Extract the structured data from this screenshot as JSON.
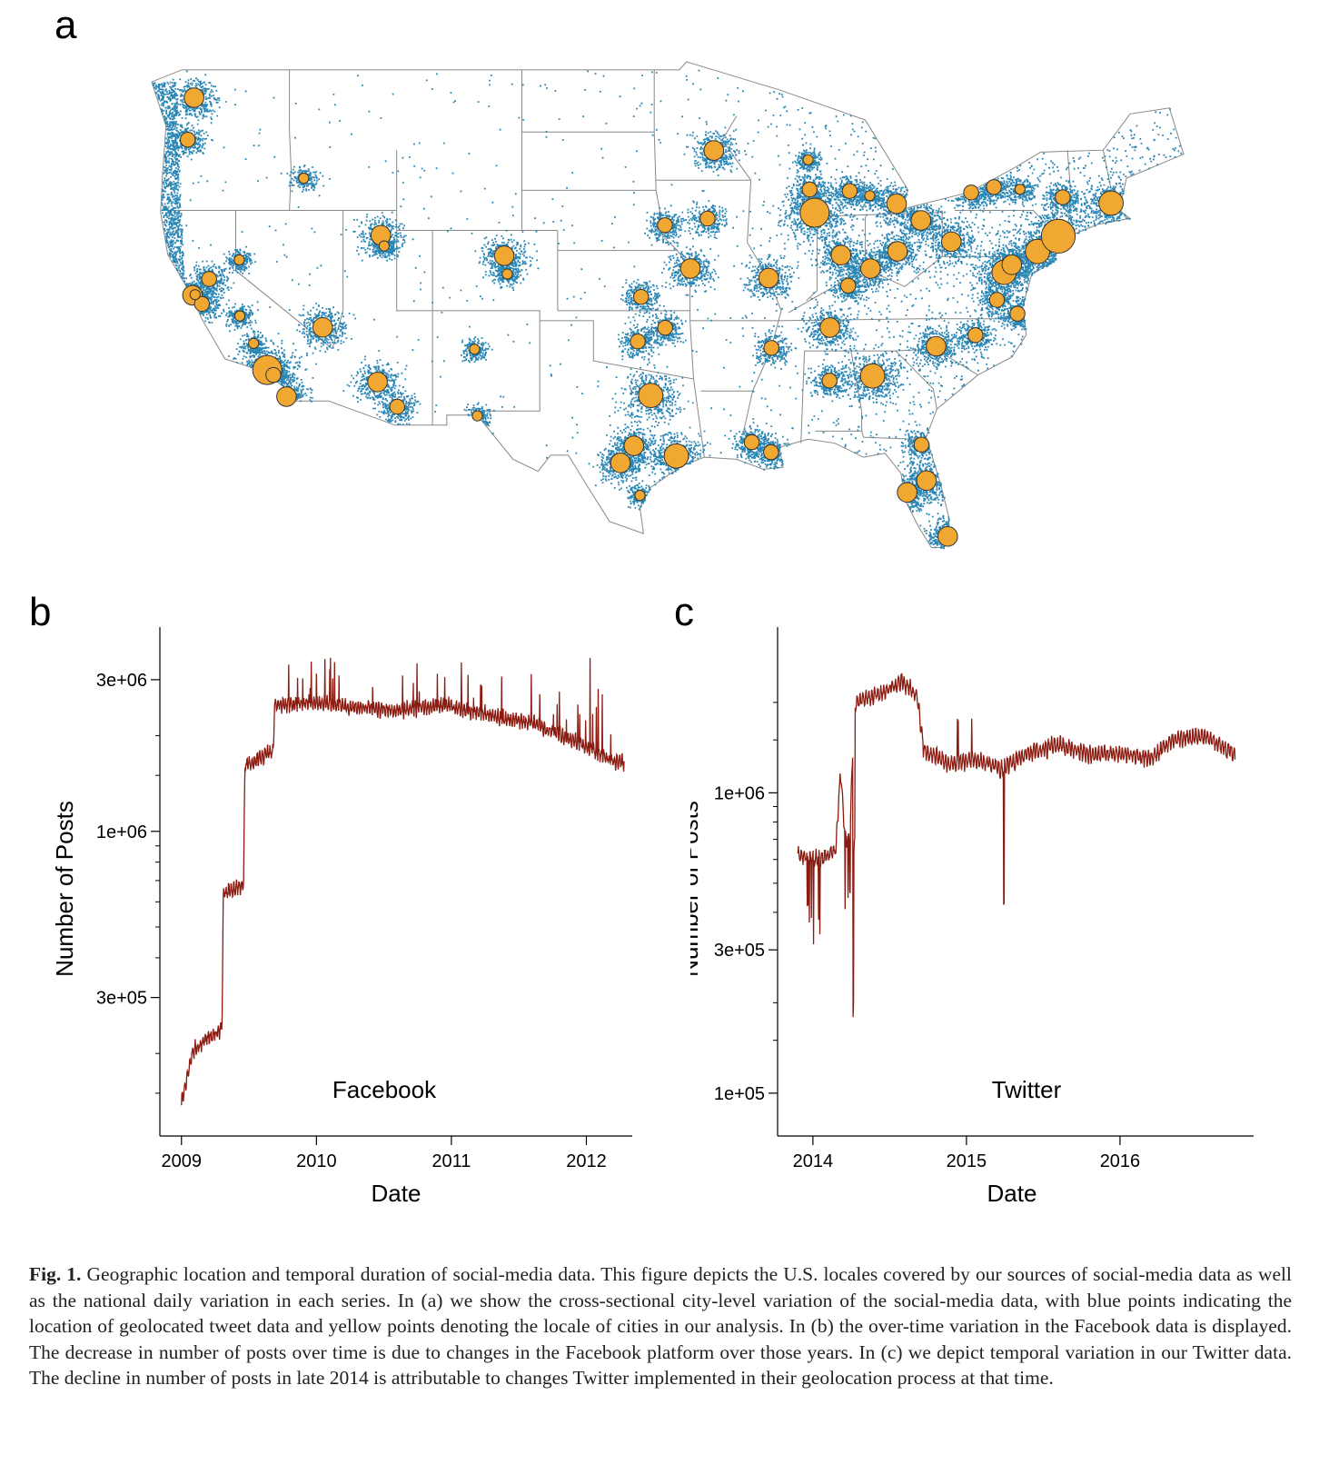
{
  "panels": {
    "a": "a",
    "b": "b",
    "c": "c"
  },
  "map": {
    "point_color": "#2a86b4",
    "city_color": "#f0a832",
    "border_color": "#888888",
    "cities": [
      {
        "lon": -122.33,
        "lat": 47.61,
        "size": 3
      },
      {
        "lon": -122.68,
        "lat": 45.52,
        "size": 2
      },
      {
        "lon": -116.2,
        "lat": 43.6,
        "size": 1
      },
      {
        "lon": -122.42,
        "lat": 37.77,
        "size": 3
      },
      {
        "lon": -121.89,
        "lat": 37.34,
        "size": 2
      },
      {
        "lon": -121.49,
        "lat": 38.58,
        "size": 2
      },
      {
        "lon": -122.27,
        "lat": 37.8,
        "size": 1
      },
      {
        "lon": -119.77,
        "lat": 36.74,
        "size": 1
      },
      {
        "lon": -119.8,
        "lat": 39.53,
        "size": 1
      },
      {
        "lon": -118.24,
        "lat": 34.05,
        "size": 5
      },
      {
        "lon": -117.16,
        "lat": 32.72,
        "size": 3
      },
      {
        "lon": -117.9,
        "lat": 33.8,
        "size": 2
      },
      {
        "lon": -119.0,
        "lat": 35.37,
        "size": 1
      },
      {
        "lon": -115.14,
        "lat": 36.17,
        "size": 3
      },
      {
        "lon": -112.07,
        "lat": 33.45,
        "size": 3
      },
      {
        "lon": -110.97,
        "lat": 32.22,
        "size": 2
      },
      {
        "lon": -111.89,
        "lat": 40.76,
        "size": 3
      },
      {
        "lon": -111.7,
        "lat": 40.23,
        "size": 1
      },
      {
        "lon": -106.65,
        "lat": 35.08,
        "size": 1
      },
      {
        "lon": -106.49,
        "lat": 31.76,
        "size": 1
      },
      {
        "lon": -104.99,
        "lat": 39.74,
        "size": 3
      },
      {
        "lon": -104.82,
        "lat": 38.83,
        "size": 1
      },
      {
        "lon": -96.8,
        "lat": 32.78,
        "size": 4
      },
      {
        "lon": -97.74,
        "lat": 30.27,
        "size": 3
      },
      {
        "lon": -95.37,
        "lat": 29.76,
        "size": 4
      },
      {
        "lon": -98.49,
        "lat": 29.42,
        "size": 3
      },
      {
        "lon": -97.4,
        "lat": 27.8,
        "size": 1
      },
      {
        "lon": -97.52,
        "lat": 35.47,
        "size": 2
      },
      {
        "lon": -95.99,
        "lat": 36.15,
        "size": 2
      },
      {
        "lon": -97.34,
        "lat": 37.69,
        "size": 2
      },
      {
        "lon": -94.58,
        "lat": 39.1,
        "size": 3
      },
      {
        "lon": -96.0,
        "lat": 41.26,
        "size": 2
      },
      {
        "lon": -93.62,
        "lat": 41.59,
        "size": 2
      },
      {
        "lon": -93.27,
        "lat": 44.98,
        "size": 3
      },
      {
        "lon": -90.2,
        "lat": 38.63,
        "size": 3
      },
      {
        "lon": -87.63,
        "lat": 41.88,
        "size": 5
      },
      {
        "lon": -87.91,
        "lat": 43.04,
        "size": 2
      },
      {
        "lon": -86.16,
        "lat": 39.77,
        "size": 3
      },
      {
        "lon": -84.51,
        "lat": 39.1,
        "size": 3
      },
      {
        "lon": -83.0,
        "lat": 39.96,
        "size": 3
      },
      {
        "lon": -81.69,
        "lat": 41.5,
        "size": 3
      },
      {
        "lon": -83.05,
        "lat": 42.33,
        "size": 3
      },
      {
        "lon": -85.76,
        "lat": 38.25,
        "size": 2
      },
      {
        "lon": -79.99,
        "lat": 40.44,
        "size": 3
      },
      {
        "lon": -86.78,
        "lat": 36.16,
        "size": 3
      },
      {
        "lon": -84.39,
        "lat": 33.75,
        "size": 4
      },
      {
        "lon": -86.8,
        "lat": 33.52,
        "size": 2
      },
      {
        "lon": -90.05,
        "lat": 35.15,
        "size": 2
      },
      {
        "lon": -90.07,
        "lat": 29.95,
        "size": 2
      },
      {
        "lon": -91.15,
        "lat": 30.45,
        "size": 2
      },
      {
        "lon": -81.66,
        "lat": 30.33,
        "size": 2
      },
      {
        "lon": -81.38,
        "lat": 28.54,
        "size": 3
      },
      {
        "lon": -82.46,
        "lat": 27.95,
        "size": 3
      },
      {
        "lon": -80.19,
        "lat": 25.76,
        "size": 3
      },
      {
        "lon": -80.84,
        "lat": 35.23,
        "size": 3
      },
      {
        "lon": -78.64,
        "lat": 35.78,
        "size": 2
      },
      {
        "lon": -77.44,
        "lat": 37.54,
        "size": 2
      },
      {
        "lon": -76.29,
        "lat": 36.85,
        "size": 2
      },
      {
        "lon": -77.04,
        "lat": 38.91,
        "size": 4
      },
      {
        "lon": -76.61,
        "lat": 39.29,
        "size": 3
      },
      {
        "lon": -75.17,
        "lat": 39.95,
        "size": 4
      },
      {
        "lon": -74.01,
        "lat": 40.71,
        "size": 6
      },
      {
        "lon": -71.06,
        "lat": 42.36,
        "size": 4
      },
      {
        "lon": -73.76,
        "lat": 42.65,
        "size": 2
      },
      {
        "lon": -76.15,
        "lat": 43.05,
        "size": 1
      },
      {
        "lon": -78.88,
        "lat": 42.89,
        "size": 2
      },
      {
        "lon": -77.61,
        "lat": 43.16,
        "size": 2
      },
      {
        "lon": -85.67,
        "lat": 42.96,
        "size": 2
      },
      {
        "lon": -84.55,
        "lat": 42.73,
        "size": 1
      },
      {
        "lon": -88.0,
        "lat": 44.52,
        "size": 1
      }
    ]
  },
  "chart_b": {
    "chart_data": {
      "type": "line",
      "title": "",
      "series_label": "Facebook",
      "xlabel": "Date",
      "ylabel": "Number of Posts",
      "yscale": "log",
      "xlim": [
        2008.84,
        2012.34
      ],
      "ylim": [
        110000,
        3850000
      ],
      "xticks": [
        2009,
        2010,
        2011,
        2012
      ],
      "xtick_labels": [
        "2009",
        "2010",
        "2011",
        "2012"
      ],
      "yticks": [
        300000,
        1000000,
        3000000
      ],
      "ytick_labels": [
        "3e+05",
        "1e+06",
        "3e+06"
      ],
      "minor_yticks": [
        150000,
        200000,
        400000,
        500000,
        600000,
        700000,
        800000,
        900000,
        1500000,
        2000000
      ],
      "color": "#8b1a10",
      "x_range": [
        2009.0,
        2012.28
      ],
      "points": [
        [
          2009.0,
          140000
        ],
        [
          2009.08,
          200000
        ],
        [
          2009.17,
          220000
        ],
        [
          2009.3,
          240000
        ],
        [
          2009.31,
          640000
        ],
        [
          2009.46,
          680000
        ],
        [
          2009.47,
          1600000
        ],
        [
          2009.68,
          1800000
        ],
        [
          2009.69,
          2500000
        ],
        [
          2010.0,
          2550000
        ],
        [
          2010.3,
          2450000
        ],
        [
          2010.6,
          2400000
        ],
        [
          2010.95,
          2500000
        ],
        [
          2011.3,
          2300000
        ],
        [
          2011.6,
          2200000
        ],
        [
          2011.95,
          1900000
        ],
        [
          2012.2,
          1650000
        ],
        [
          2012.28,
          1650000
        ]
      ]
    }
  },
  "chart_c": {
    "chart_data": {
      "type": "line",
      "title": "",
      "series_label": "Twitter",
      "xlabel": "Date",
      "ylabel": "Number of Posts",
      "yscale": "log",
      "xlim": [
        2013.77,
        2016.87
      ],
      "ylim": [
        72000,
        3100000
      ],
      "xticks": [
        2014,
        2015,
        2016
      ],
      "xtick_labels": [
        "2014",
        "2015",
        "2016"
      ],
      "yticks": [
        100000,
        300000,
        1000000
      ],
      "ytick_labels": [
        "1e+05",
        "3e+05",
        "1e+06"
      ],
      "minor_yticks": [
        150000,
        200000,
        400000,
        500000,
        600000,
        700000,
        800000,
        900000,
        1500000,
        2000000
      ],
      "color": "#8b1a10",
      "x_range": [
        2013.9,
        2016.75
      ],
      "points": [
        [
          2013.9,
          620000
        ],
        [
          2014.05,
          600000
        ],
        [
          2014.15,
          650000
        ],
        [
          2014.18,
          1200000
        ],
        [
          2014.21,
          700000
        ],
        [
          2014.24,
          700000
        ],
        [
          2014.27,
          2000000
        ],
        [
          2014.45,
          2150000
        ],
        [
          2014.58,
          2350000
        ],
        [
          2014.68,
          2100000
        ],
        [
          2014.72,
          1400000
        ],
        [
          2014.9,
          1250000
        ],
        [
          2015.05,
          1300000
        ],
        [
          2015.22,
          1200000
        ],
        [
          2015.4,
          1350000
        ],
        [
          2015.6,
          1450000
        ],
        [
          2015.8,
          1350000
        ],
        [
          2016.0,
          1350000
        ],
        [
          2016.2,
          1300000
        ],
        [
          2016.35,
          1500000
        ],
        [
          2016.55,
          1550000
        ],
        [
          2016.75,
          1350000
        ]
      ]
    }
  },
  "caption": {
    "label": "Fig. 1.",
    "text": " Geographic location and temporal duration of social-media data. This figure depicts the U.S. locales covered by our sources of social-media data as well as the national daily variation in each series. In (a) we show the cross-sectional city-level variation of the social-media data, with blue points indicating the location of geolocated tweet data and yellow points denoting the locale of cities in our analysis. In (b) the over-time variation in the Facebook data is displayed. The decrease in number of posts over time is due to changes in the Facebook platform over those years. In (c) we depict temporal variation in our Twitter data. The decline in number of posts in late 2014 is attributable to changes Twitter implemented in their geolocation process at that time."
  }
}
